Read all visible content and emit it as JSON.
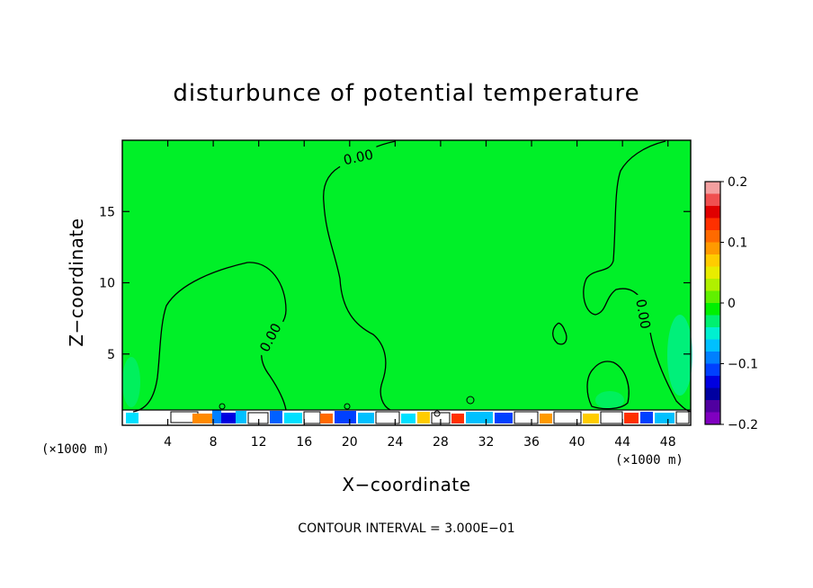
{
  "chart_data": {
    "type": "heatmap",
    "title": "disturbunce of potential temperature",
    "xlabel": "X−coordinate",
    "ylabel": "Z−coordinate",
    "x_unit_label": "(×1000 m)",
    "xlim": [
      0,
      50
    ],
    "ylim": [
      0,
      20
    ],
    "x_ticks": [
      4,
      8,
      12,
      16,
      20,
      24,
      28,
      32,
      36,
      40,
      44,
      48
    ],
    "y_ticks": [
      5,
      10,
      15
    ],
    "colorbar": {
      "range": [
        -0.2,
        0.2
      ],
      "tick_labels": [
        "0.2",
        "0.1",
        "0",
        "−0.1",
        "−0.2"
      ],
      "colors": [
        "#f4a0a0",
        "#f05050",
        "#e00000",
        "#ff3000",
        "#ff6a00",
        "#ff9a00",
        "#ffcc00",
        "#e8ec00",
        "#b0f000",
        "#60f000",
        "#00f000",
        "#00f070",
        "#00f0d0",
        "#00c0ff",
        "#0080ff",
        "#0040ff",
        "#0000e0",
        "#0000a0",
        "#5000a0",
        "#8000c0"
      ]
    },
    "contour_label": "0.00",
    "contour_interval_text": "CONTOUR INTERVAL = 3.000E−01"
  },
  "colors": {
    "field": "#00f028",
    "background": "#ffffff",
    "line": "#000000"
  }
}
